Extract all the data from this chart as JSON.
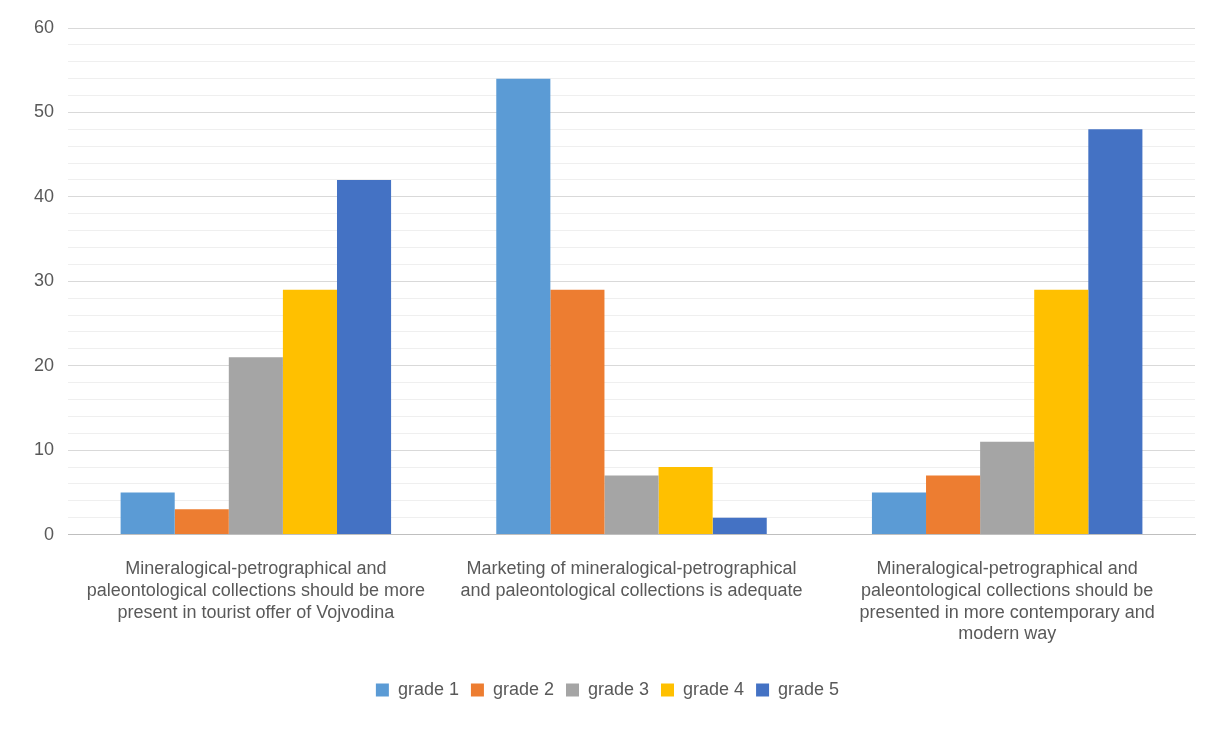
{
  "chart_data": {
    "type": "bar",
    "categories": [
      "Mineralogical-petrographical and paleontological collections should be more present in tourist offer of Vojvodina",
      "Marketing of mineralogical-petrographical and paleontological collections is adequate",
      "Mineralogical-petrographical and paleontological collections should be presented in more contemporary and modern way"
    ],
    "series": [
      {
        "name": "grade 1",
        "color": "#5b9bd5",
        "values": [
          5,
          54,
          5
        ]
      },
      {
        "name": "grade 2",
        "color": "#ed7d31",
        "values": [
          3,
          29,
          7
        ]
      },
      {
        "name": "grade 3",
        "color": "#a5a5a5",
        "values": [
          21,
          7,
          11
        ]
      },
      {
        "name": "grade 4",
        "color": "#ffc000",
        "values": [
          29,
          8,
          29
        ]
      },
      {
        "name": "grade 5",
        "color": "#4472c4",
        "values": [
          42,
          2,
          48
        ]
      }
    ],
    "ylim": [
      0,
      60
    ],
    "yticks": [
      0,
      {
        "value": 2,
        "label": null
      },
      {
        "value": 4,
        "label": null
      },
      {
        "value": 6,
        "label": null
      },
      {
        "value": 8,
        "label": null
      },
      10,
      {
        "value": 12,
        "label": null
      },
      {
        "value": 14,
        "label": null
      },
      {
        "value": 16,
        "label": null
      },
      {
        "value": 18,
        "label": null
      },
      20,
      {
        "value": 22,
        "label": null
      },
      {
        "value": 24,
        "label": null
      },
      {
        "value": 26,
        "label": null
      },
      {
        "value": 28,
        "label": null
      },
      30,
      {
        "value": 32,
        "label": null
      },
      {
        "value": 34,
        "label": null
      },
      {
        "value": 36,
        "label": null
      },
      {
        "value": 38,
        "label": null
      },
      40,
      {
        "value": 42,
        "label": null
      },
      {
        "value": 44,
        "label": null
      },
      {
        "value": 46,
        "label": null
      },
      {
        "value": 48,
        "label": null
      },
      50,
      {
        "value": 52,
        "label": null
      },
      {
        "value": 54,
        "label": null
      },
      {
        "value": 56,
        "label": null
      },
      {
        "value": 58,
        "label": null
      },
      60
    ],
    "grid": "y",
    "legend": "bottom"
  }
}
